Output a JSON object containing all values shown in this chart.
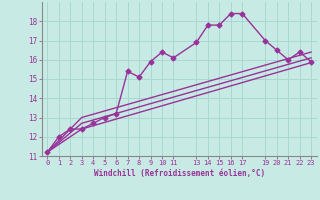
{
  "xlabel": "Windchill (Refroidissement éolien,°C)",
  "background_color": "#c8eae4",
  "grid_color": "#a8d8d0",
  "line_color": "#993399",
  "xlim": [
    -0.5,
    23.5
  ],
  "ylim": [
    11,
    19
  ],
  "xticks": [
    0,
    1,
    2,
    3,
    4,
    5,
    6,
    7,
    8,
    9,
    10,
    11,
    13,
    14,
    15,
    16,
    17,
    19,
    20,
    21,
    22,
    23
  ],
  "yticks": [
    11,
    12,
    13,
    14,
    15,
    16,
    17,
    18
  ],
  "series": [
    {
      "x": [
        0,
        1,
        2,
        3,
        4,
        5,
        6,
        7,
        8,
        9,
        10,
        11,
        13,
        14,
        15,
        16,
        17,
        19,
        20,
        21,
        22,
        23
      ],
      "y": [
        11.2,
        12.0,
        12.4,
        12.4,
        12.7,
        13.0,
        13.2,
        15.4,
        15.1,
        15.9,
        16.4,
        16.1,
        16.9,
        17.8,
        17.8,
        18.4,
        18.4,
        17.0,
        16.5,
        16.0,
        16.4,
        15.9
      ],
      "marker": "D",
      "markersize": 2.5,
      "linewidth": 1.0
    },
    {
      "x": [
        0,
        3,
        23
      ],
      "y": [
        11.2,
        12.4,
        15.85
      ],
      "marker": null,
      "linewidth": 1.0
    },
    {
      "x": [
        0,
        3,
        23
      ],
      "y": [
        11.2,
        12.7,
        16.1
      ],
      "marker": null,
      "linewidth": 1.0
    },
    {
      "x": [
        0,
        3,
        23
      ],
      "y": [
        11.2,
        13.0,
        16.4
      ],
      "marker": null,
      "linewidth": 1.0
    }
  ]
}
